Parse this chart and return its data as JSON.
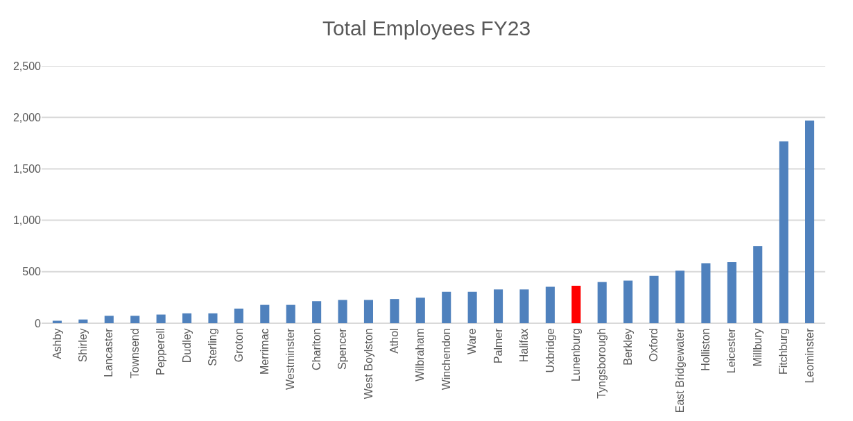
{
  "chart_data": {
    "type": "bar",
    "title": "Total Employees FY23",
    "categories": [
      "Ashby",
      "Shirley",
      "Lancaster",
      "Townsend",
      "Pepperell",
      "Dudley",
      "Sterling",
      "Groton",
      "Merrimac",
      "Westminster",
      "Charlton",
      "Spencer",
      "West Boylston",
      "Athol",
      "Wilbraham",
      "Winchendon",
      "Ware",
      "Palmer",
      "Halifax",
      "Uxbridge",
      "Lunenburg",
      "Tyngsborough",
      "Berkley",
      "Oxford",
      "East Bridgewater",
      "Holliston",
      "Leicester",
      "Millbury",
      "Fitchburg",
      "Leominster"
    ],
    "values": [
      24,
      36,
      72,
      72,
      84,
      96,
      96,
      142,
      178,
      178,
      214,
      226,
      226,
      235,
      248,
      305,
      305,
      328,
      328,
      354,
      364,
      400,
      414,
      460,
      510,
      583,
      593,
      748,
      1768,
      1970
    ],
    "colors": [
      "#4f81bd",
      "#4f81bd",
      "#4f81bd",
      "#4f81bd",
      "#4f81bd",
      "#4f81bd",
      "#4f81bd",
      "#4f81bd",
      "#4f81bd",
      "#4f81bd",
      "#4f81bd",
      "#4f81bd",
      "#4f81bd",
      "#4f81bd",
      "#4f81bd",
      "#4f81bd",
      "#4f81bd",
      "#4f81bd",
      "#4f81bd",
      "#4f81bd",
      "#ff0000",
      "#4f81bd",
      "#4f81bd",
      "#4f81bd",
      "#4f81bd",
      "#4f81bd",
      "#4f81bd",
      "#4f81bd",
      "#4f81bd",
      "#4f81bd"
    ],
    "ylim": [
      0,
      2500
    ],
    "yticks": [
      {
        "value": 0,
        "label": "0"
      },
      {
        "value": 500,
        "label": "500"
      },
      {
        "value": 1000,
        "label": "1,000"
      },
      {
        "value": 1500,
        "label": "1,500"
      },
      {
        "value": 2000,
        "label": "2,000"
      },
      {
        "value": 2500,
        "label": "2,500"
      }
    ],
    "grid": "y"
  }
}
